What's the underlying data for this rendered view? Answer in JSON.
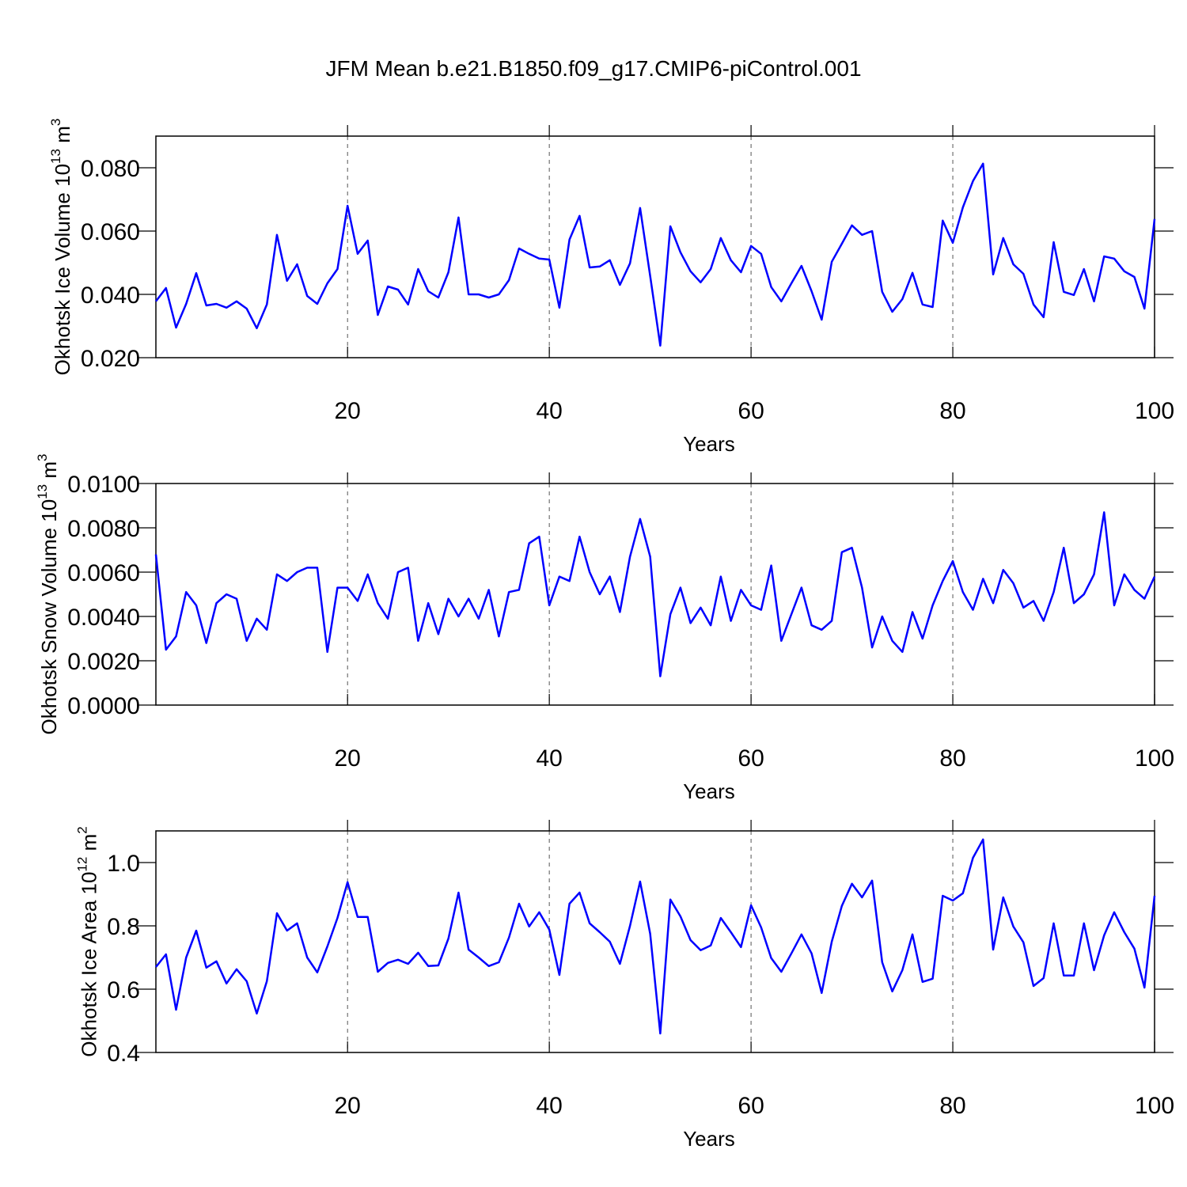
{
  "title": "JFM Mean b.e21.B1850.f09_g17.CMIP6-piControl.001",
  "chart_data": [
    {
      "type": "line",
      "xlabel": "Years",
      "ylabel": [
        "Okhotsk Ice Volume 10",
        "13",
        " m",
        "3"
      ],
      "xlim": [
        1,
        100
      ],
      "xticks": [
        20,
        40,
        60,
        80,
        100
      ],
      "ylim": [
        0.02,
        0.09
      ],
      "yticks": [
        {
          "value": 0.02,
          "label": "0.020"
        },
        {
          "value": 0.04,
          "label": "0.040"
        },
        {
          "value": 0.06,
          "label": "0.060"
        },
        {
          "value": 0.08,
          "label": "0.080"
        }
      ],
      "x_grid": true,
      "x": [
        1,
        2,
        3,
        4,
        5,
        6,
        7,
        8,
        9,
        10,
        11,
        12,
        13,
        14,
        15,
        16,
        17,
        18,
        19,
        20,
        21,
        22,
        23,
        24,
        25,
        26,
        27,
        28,
        29,
        30,
        31,
        32,
        33,
        34,
        35,
        36,
        37,
        38,
        39,
        40,
        41,
        42,
        43,
        44,
        45,
        46,
        47,
        48,
        49,
        50,
        51,
        52,
        53,
        54,
        55,
        56,
        57,
        58,
        59,
        60,
        61,
        62,
        63,
        64,
        65,
        66,
        67,
        68,
        69,
        70,
        71,
        72,
        73,
        74,
        75,
        76,
        77,
        78,
        79,
        80,
        81,
        82,
        83,
        84,
        85,
        86,
        87,
        88,
        89,
        90,
        91,
        92,
        93,
        94,
        95,
        96,
        97,
        98,
        99,
        100
      ],
      "series": [
        {
          "color": "#0000ff",
          "values": [
            0.0378,
            0.042,
            0.0295,
            0.037,
            0.0467,
            0.0365,
            0.037,
            0.0358,
            0.0378,
            0.0355,
            0.0293,
            0.0368,
            0.0588,
            0.0443,
            0.0495,
            0.0395,
            0.037,
            0.0435,
            0.048,
            0.068,
            0.0528,
            0.057,
            0.0335,
            0.0425,
            0.0415,
            0.0368,
            0.048,
            0.041,
            0.039,
            0.047,
            0.0643,
            0.04,
            0.04,
            0.039,
            0.04,
            0.0445,
            0.0545,
            0.0528,
            0.0513,
            0.051,
            0.0358,
            0.0573,
            0.0648,
            0.0485,
            0.0488,
            0.0508,
            0.043,
            0.0498,
            0.0673,
            0.0458,
            0.0238,
            0.0615,
            0.0533,
            0.0473,
            0.0438,
            0.048,
            0.0578,
            0.0508,
            0.047,
            0.0553,
            0.0528,
            0.0423,
            0.0378,
            0.0435,
            0.049,
            0.041,
            0.032,
            0.0503,
            0.056,
            0.0618,
            0.0588,
            0.06,
            0.0408,
            0.0345,
            0.0385,
            0.0468,
            0.0368,
            0.036,
            0.0633,
            0.0563,
            0.0675,
            0.0758,
            0.0813,
            0.0463,
            0.0578,
            0.0495,
            0.0465,
            0.0368,
            0.0328,
            0.0565,
            0.0408,
            0.0398,
            0.048,
            0.0378,
            0.052,
            0.0513,
            0.0473,
            0.0455,
            0.0355,
            0.0638
          ]
        }
      ]
    },
    {
      "type": "line",
      "xlabel": "Years",
      "ylabel": [
        "Okhotsk Snow Volume 10",
        "13",
        " m",
        "3"
      ],
      "xlim": [
        1,
        100
      ],
      "xticks": [
        20,
        40,
        60,
        80,
        100
      ],
      "ylim": [
        0,
        0.01
      ],
      "yticks": [
        {
          "value": 0,
          "label": "0.0000"
        },
        {
          "value": 0.002,
          "label": "0.0020"
        },
        {
          "value": 0.004,
          "label": "0.0040"
        },
        {
          "value": 0.006,
          "label": "0.0060"
        },
        {
          "value": 0.008,
          "label": "0.0080"
        },
        {
          "value": 0.01,
          "label": "0.0100"
        }
      ],
      "x_grid": true,
      "x": [
        1,
        2,
        3,
        4,
        5,
        6,
        7,
        8,
        9,
        10,
        11,
        12,
        13,
        14,
        15,
        16,
        17,
        18,
        19,
        20,
        21,
        22,
        23,
        24,
        25,
        26,
        27,
        28,
        29,
        30,
        31,
        32,
        33,
        34,
        35,
        36,
        37,
        38,
        39,
        40,
        41,
        42,
        43,
        44,
        45,
        46,
        47,
        48,
        49,
        50,
        51,
        52,
        53,
        54,
        55,
        56,
        57,
        58,
        59,
        60,
        61,
        62,
        63,
        64,
        65,
        66,
        67,
        68,
        69,
        70,
        71,
        72,
        73,
        74,
        75,
        76,
        77,
        78,
        79,
        80,
        81,
        82,
        83,
        84,
        85,
        86,
        87,
        88,
        89,
        90,
        91,
        92,
        93,
        94,
        95,
        96,
        97,
        98,
        99,
        100
      ],
      "series": [
        {
          "color": "#0000ff",
          "values": [
            0.0068,
            0.0025,
            0.0031,
            0.0051,
            0.0045,
            0.0028,
            0.0046,
            0.005,
            0.0048,
            0.0029,
            0.0039,
            0.0034,
            0.0059,
            0.0056,
            0.006,
            0.0062,
            0.0062,
            0.0024,
            0.0053,
            0.0053,
            0.0047,
            0.0059,
            0.0046,
            0.0039,
            0.006,
            0.0062,
            0.0029,
            0.0046,
            0.0032,
            0.0048,
            0.004,
            0.0048,
            0.0039,
            0.0052,
            0.0031,
            0.0051,
            0.0052,
            0.0073,
            0.0076,
            0.0045,
            0.0058,
            0.0056,
            0.0076,
            0.006,
            0.005,
            0.0058,
            0.0042,
            0.0067,
            0.0084,
            0.0067,
            0.0013,
            0.0041,
            0.0053,
            0.0037,
            0.0044,
            0.0036,
            0.0058,
            0.0038,
            0.0052,
            0.0045,
            0.0043,
            0.0063,
            0.0029,
            0.0041,
            0.0053,
            0.0036,
            0.0034,
            0.0038,
            0.0069,
            0.0071,
            0.0053,
            0.0026,
            0.004,
            0.0029,
            0.0024,
            0.0042,
            0.003,
            0.0045,
            0.0056,
            0.0065,
            0.0051,
            0.0043,
            0.0057,
            0.0046,
            0.0061,
            0.0055,
            0.0044,
            0.0047,
            0.0038,
            0.0051,
            0.0071,
            0.0046,
            0.005,
            0.0059,
            0.0087,
            0.0045,
            0.0059,
            0.0052,
            0.0048,
            0.0058
          ]
        }
      ]
    },
    {
      "type": "line",
      "xlabel": "Years",
      "ylabel": [
        "Okhotsk Ice Area 10",
        "12",
        " m",
        "2"
      ],
      "xlim": [
        1,
        100
      ],
      "xticks": [
        20,
        40,
        60,
        80,
        100
      ],
      "ylim": [
        0.4,
        1.1
      ],
      "yticks": [
        0.4,
        0.6,
        0.8,
        {
          "value": 1.0,
          "label": "1.0"
        }
      ],
      "x_grid": true,
      "x": [
        1,
        2,
        3,
        4,
        5,
        6,
        7,
        8,
        9,
        10,
        11,
        12,
        13,
        14,
        15,
        16,
        17,
        18,
        19,
        20,
        21,
        22,
        23,
        24,
        25,
        26,
        27,
        28,
        29,
        30,
        31,
        32,
        33,
        34,
        35,
        36,
        37,
        38,
        39,
        40,
        41,
        42,
        43,
        44,
        45,
        46,
        47,
        48,
        49,
        50,
        51,
        52,
        53,
        54,
        55,
        56,
        57,
        58,
        59,
        60,
        61,
        62,
        63,
        64,
        65,
        66,
        67,
        68,
        69,
        70,
        71,
        72,
        73,
        74,
        75,
        76,
        77,
        78,
        79,
        80,
        81,
        82,
        83,
        84,
        85,
        86,
        87,
        88,
        89,
        90,
        91,
        92,
        93,
        94,
        95,
        96,
        97,
        98,
        99,
        100
      ],
      "series": [
        {
          "color": "#0000ff",
          "values": [
            0.67,
            0.71,
            0.535,
            0.7,
            0.785,
            0.668,
            0.688,
            0.618,
            0.663,
            0.625,
            0.523,
            0.625,
            0.84,
            0.785,
            0.808,
            0.7,
            0.653,
            0.735,
            0.825,
            0.938,
            0.828,
            0.828,
            0.655,
            0.683,
            0.693,
            0.68,
            0.715,
            0.673,
            0.675,
            0.76,
            0.905,
            0.725,
            0.7,
            0.673,
            0.685,
            0.763,
            0.87,
            0.798,
            0.843,
            0.788,
            0.645,
            0.87,
            0.905,
            0.808,
            0.78,
            0.75,
            0.68,
            0.8,
            0.94,
            0.775,
            0.46,
            0.883,
            0.83,
            0.755,
            0.723,
            0.738,
            0.825,
            0.78,
            0.733,
            0.865,
            0.795,
            0.698,
            0.655,
            0.713,
            0.773,
            0.713,
            0.588,
            0.75,
            0.863,
            0.933,
            0.89,
            0.943,
            0.685,
            0.593,
            0.66,
            0.773,
            0.623,
            0.633,
            0.895,
            0.88,
            0.903,
            1.015,
            1.073,
            0.725,
            0.89,
            0.798,
            0.748,
            0.61,
            0.635,
            0.808,
            0.643,
            0.643,
            0.808,
            0.66,
            0.77,
            0.843,
            0.78,
            0.728,
            0.605,
            0.895
          ]
        }
      ]
    }
  ]
}
